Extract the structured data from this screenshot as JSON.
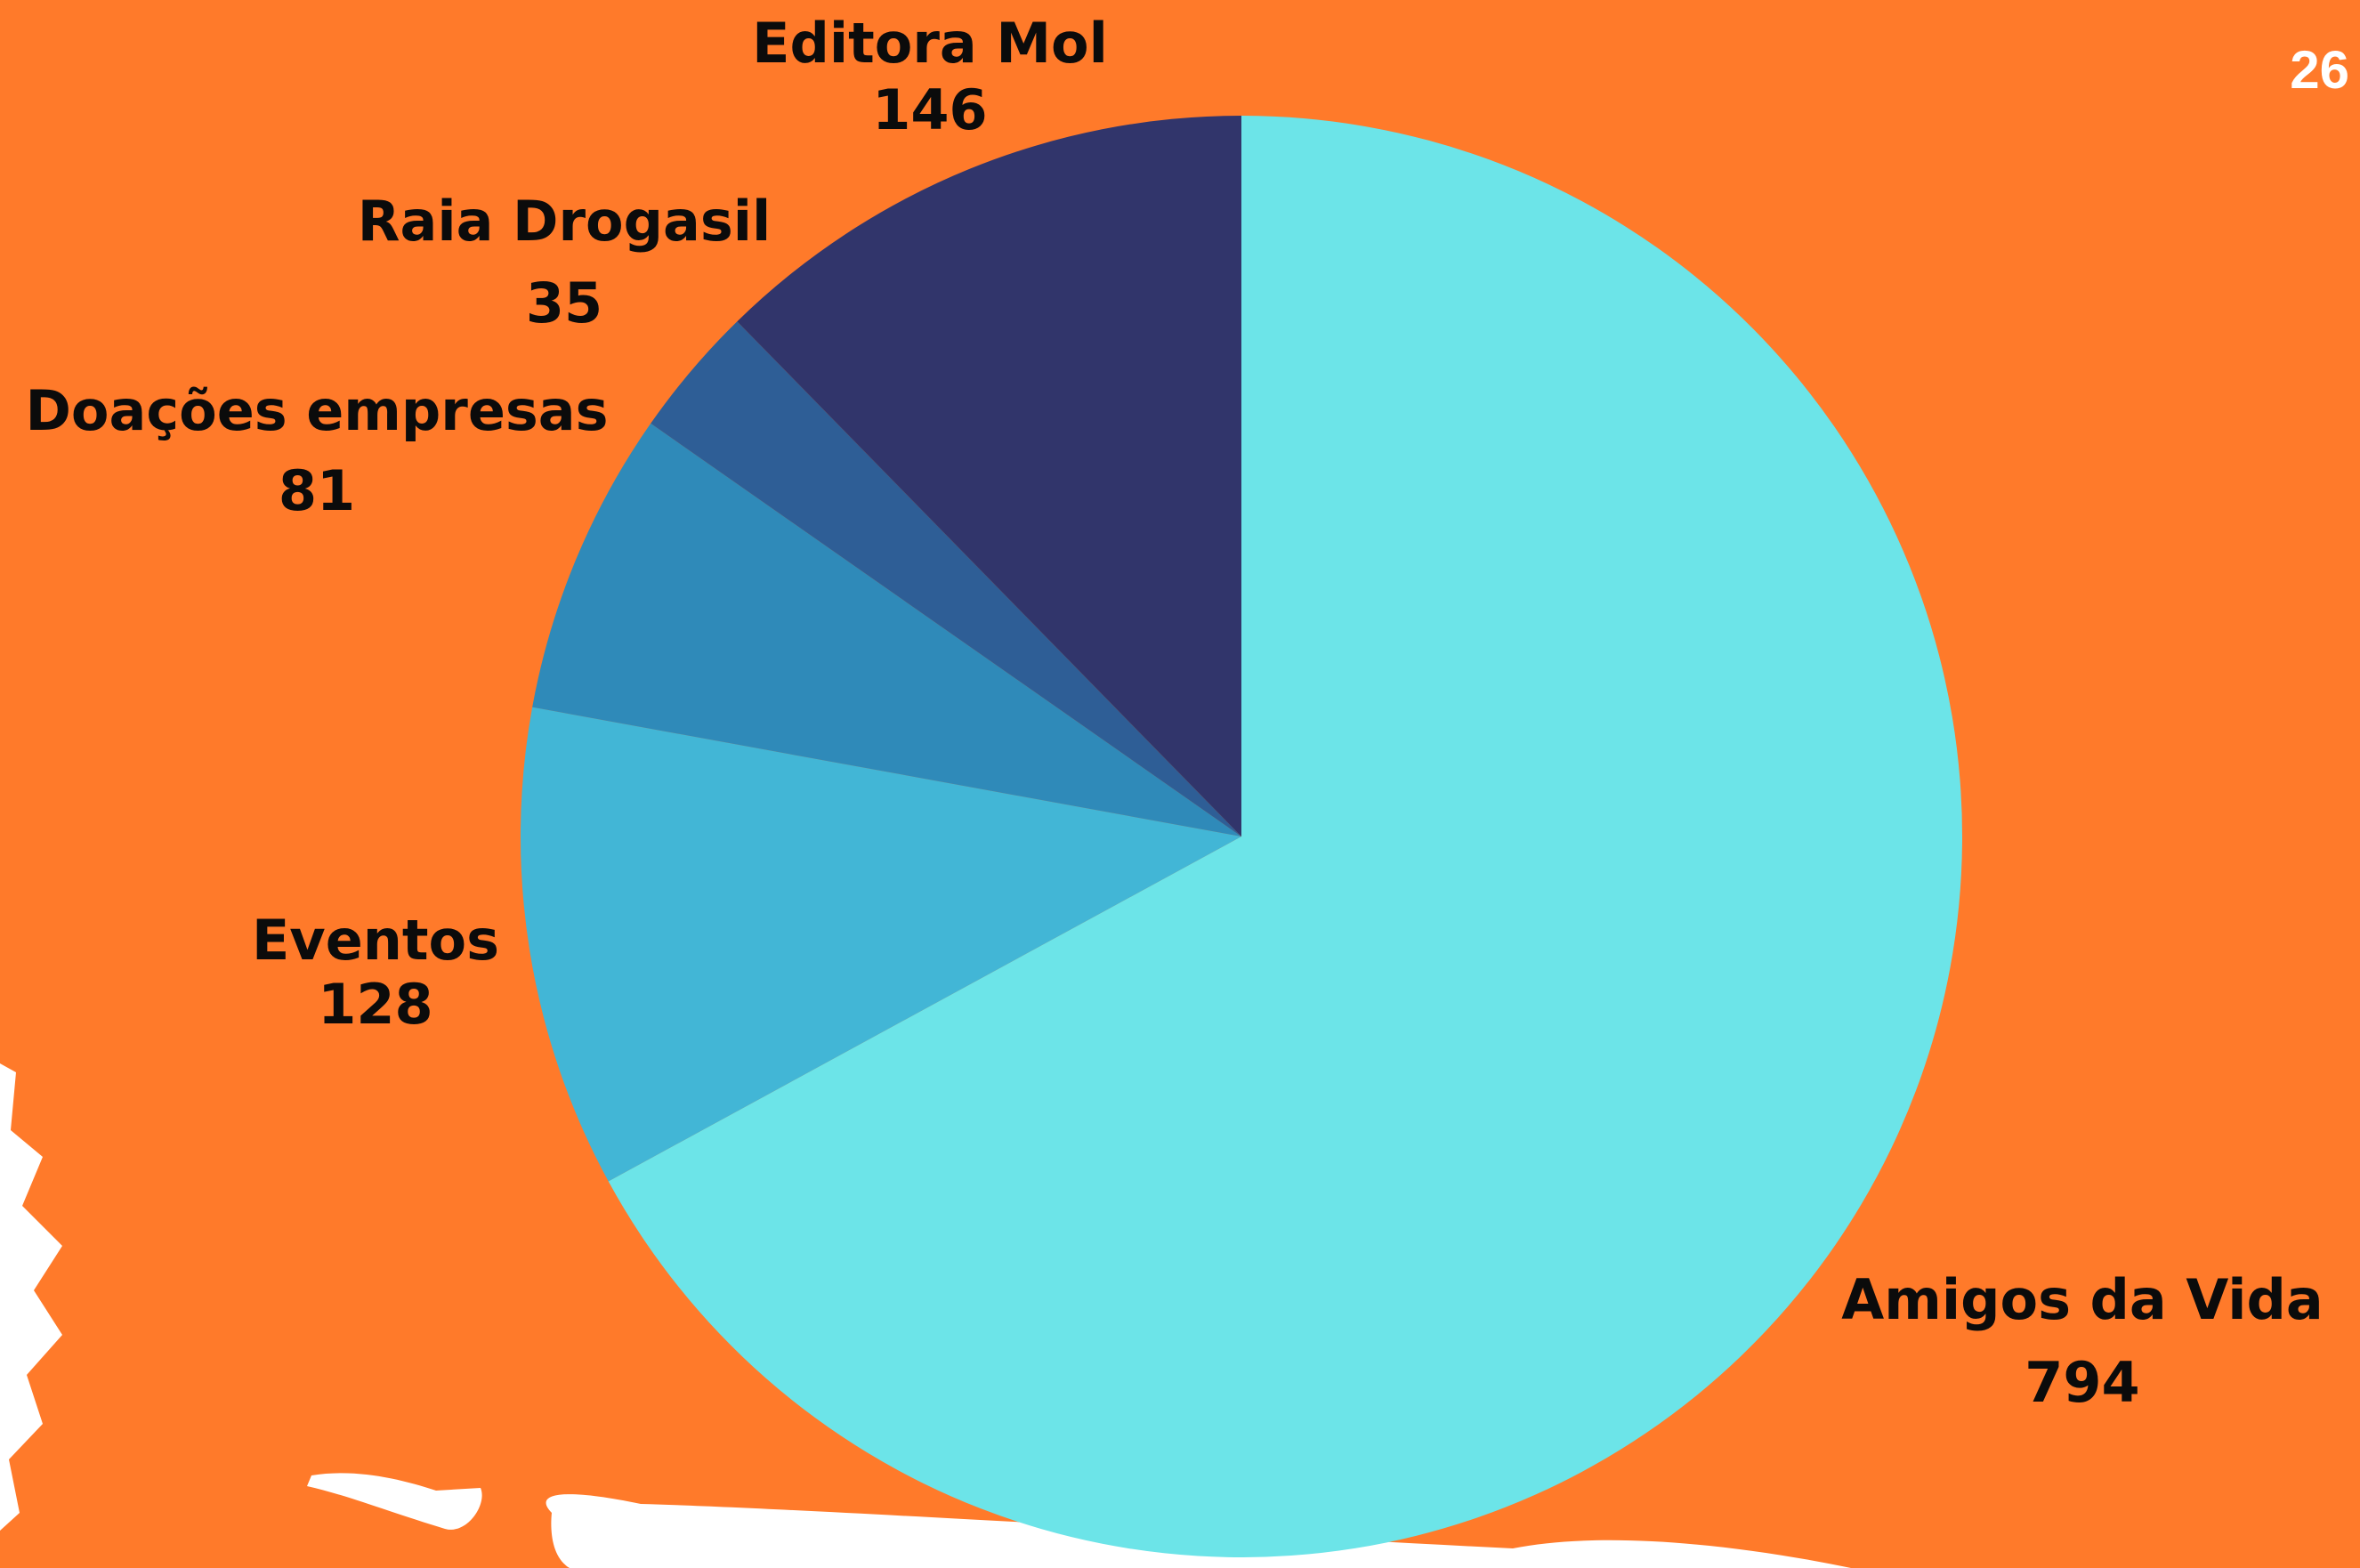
{
  "page_number": "26",
  "colors": {
    "background": "#FF7A2A",
    "decoration": "#FFFFFF"
  },
  "chart_data": {
    "type": "pie",
    "title": "",
    "start_angle_deg": 0,
    "direction": "clockwise",
    "slices": [
      {
        "label": "Amigos da Vida",
        "value": 794,
        "color": "#6CE4E8"
      },
      {
        "label": "Eventos",
        "value": 128,
        "color": "#42B6D6"
      },
      {
        "label": "Doações empresas",
        "value": 81,
        "color": "#2F8AB9"
      },
      {
        "label": "Raia Drogasil",
        "value": 35,
        "color": "#2E5E96"
      },
      {
        "label": "Editora Mol",
        "value": 146,
        "color": "#31356B"
      }
    ]
  }
}
